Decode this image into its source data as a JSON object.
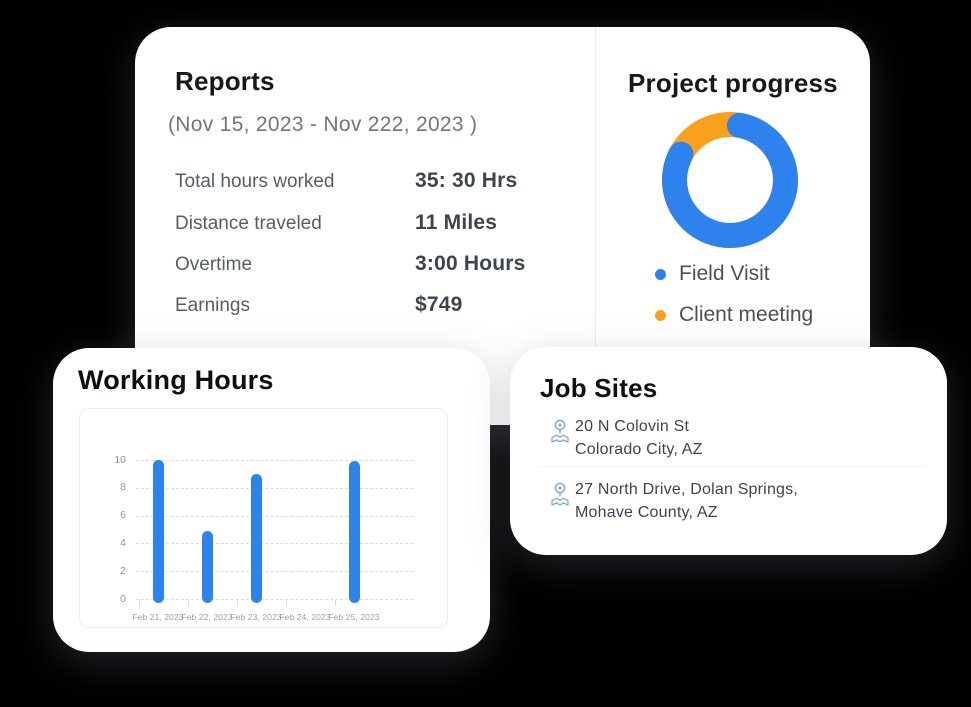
{
  "background_color": "#000000",
  "accent_blue": "#2E82EE",
  "accent_orange": "#F9A11B",
  "reports": {
    "title": "Reports",
    "date_range": "(Nov 15, 2023 - Nov 222, 2023 )",
    "stats": [
      {
        "label": "Total hours worked",
        "value": "35: 30 Hrs"
      },
      {
        "label": "Distance traveled",
        "value": "11 Miles"
      },
      {
        "label": "Overtime",
        "value": "3:00 Hours"
      },
      {
        "label": "Earnings",
        "value": "$749"
      }
    ]
  },
  "project_progress": {
    "title": "Project progress",
    "legend": [
      {
        "label": "Field Visit",
        "color": "#2E82EE"
      },
      {
        "label": "Client meeting",
        "color": "#F9A11B"
      }
    ]
  },
  "working_hours": {
    "title": "Working Hours"
  },
  "job_sites": {
    "title": "Job Sites",
    "items": [
      {
        "line1": "20 N Colovin St",
        "line2": "Colorado City, AZ",
        "icon": "map-pin-icon"
      },
      {
        "line1": "27 North Drive, Dolan Springs,",
        "line2": "Mohave County, AZ",
        "icon": "map-pin-icon"
      }
    ]
  },
  "chart_data": [
    {
      "type": "pie",
      "variant": "donut",
      "title": "Project progress",
      "labels": [
        "Field Visit",
        "Client meeting"
      ],
      "values": [
        80,
        20
      ],
      "colors": [
        "#2E82EE",
        "#F9A11B"
      ],
      "legend_position": "bottom",
      "start_angle_deg_from_top": 10
    },
    {
      "type": "bar",
      "title": "Working Hours",
      "categories": [
        "Feb 21, 2023",
        "Feb 22, 2023",
        "Feb 23, 2023",
        "Feb 24, 2023",
        "Feb 25, 2023"
      ],
      "values": [
        10,
        4.9,
        9,
        0,
        9.9
      ],
      "bar_color": "#2E82EE",
      "yticks": [
        0,
        2,
        4,
        6,
        8,
        10
      ],
      "ylim": [
        0,
        10
      ],
      "xlabel": "",
      "ylabel": "",
      "grid": "horizontal-dashed"
    }
  ]
}
